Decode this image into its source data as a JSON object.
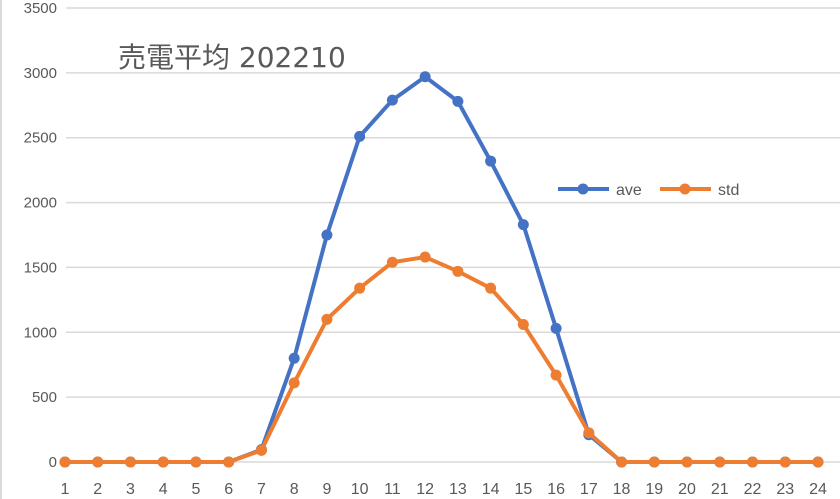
{
  "chart_data": {
    "type": "line",
    "title": "売電平均 202210",
    "xlabel": "",
    "ylabel": "",
    "categories": [
      "1",
      "2",
      "3",
      "4",
      "5",
      "6",
      "7",
      "8",
      "9",
      "10",
      "11",
      "12",
      "13",
      "14",
      "15",
      "16",
      "17",
      "18",
      "19",
      "20",
      "21",
      "22",
      "23",
      "24"
    ],
    "series": [
      {
        "name": "ave",
        "color": "#4472C4",
        "values": [
          0,
          0,
          0,
          0,
          0,
          0,
          95,
          800,
          1750,
          2510,
          2790,
          2970,
          2780,
          2320,
          1830,
          1030,
          210,
          0,
          0,
          0,
          0,
          0,
          0,
          0
        ]
      },
      {
        "name": "std",
        "color": "#ED7D31",
        "values": [
          0,
          0,
          0,
          0,
          0,
          0,
          90,
          610,
          1100,
          1340,
          1540,
          1580,
          1470,
          1340,
          1060,
          670,
          225,
          0,
          0,
          0,
          0,
          0,
          0,
          0
        ]
      }
    ],
    "ylim": [
      0,
      3500
    ],
    "yticks": [
      0,
      500,
      1000,
      1500,
      2000,
      2500,
      3000,
      3500
    ],
    "grid": true,
    "legend_position": "right-middle (inside plot)"
  }
}
